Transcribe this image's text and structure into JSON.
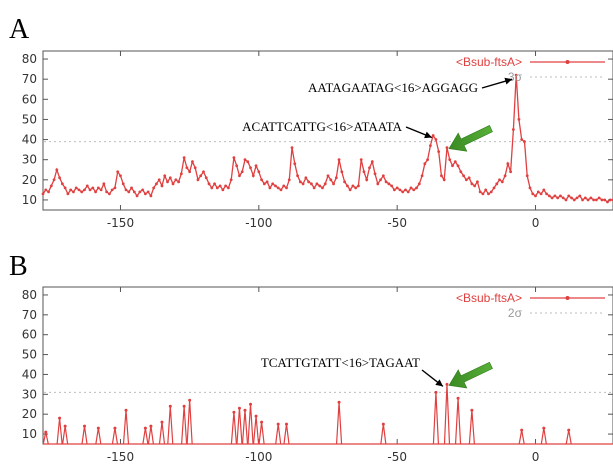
{
  "chart_data": [
    {
      "type": "line",
      "panel_label": "A",
      "legend": [
        {
          "label": "<Bsub-ftsA>",
          "color": "#e04040",
          "style": "line-points"
        },
        {
          "label": "3σ",
          "color": "#b8b8b8",
          "style": "dotted"
        }
      ],
      "threshold": 39,
      "xlim": [
        -178,
        28
      ],
      "ylim": [
        5,
        84
      ],
      "xticks": [
        -150,
        -100,
        -50,
        0
      ],
      "yticks": [
        10,
        20,
        30,
        40,
        50,
        60,
        70,
        80
      ],
      "annotations": [
        {
          "text": "AATAGAATAG<16>AGGAGG",
          "x": -7,
          "y": 70
        },
        {
          "text": "ACATTCATTG<16>ATAATA",
          "x": -36,
          "y": 42
        }
      ],
      "highlight_arrow_target": {
        "x": -32,
        "y": 36
      },
      "points": [
        [
          -178,
          13
        ],
        [
          -177,
          15
        ],
        [
          -176,
          14
        ],
        [
          -175,
          17
        ],
        [
          -174,
          20
        ],
        [
          -173,
          25
        ],
        [
          -172,
          21
        ],
        [
          -171,
          18
        ],
        [
          -170,
          16
        ],
        [
          -169,
          13
        ],
        [
          -168,
          15
        ],
        [
          -167,
          14
        ],
        [
          -166,
          16
        ],
        [
          -165,
          15
        ],
        [
          -164,
          14
        ],
        [
          -163,
          15
        ],
        [
          -162,
          17
        ],
        [
          -161,
          15
        ],
        [
          -160,
          16
        ],
        [
          -159,
          14
        ],
        [
          -158,
          16
        ],
        [
          -157,
          15
        ],
        [
          -156,
          18
        ],
        [
          -155,
          14
        ],
        [
          -154,
          13
        ],
        [
          -153,
          15
        ],
        [
          -152,
          16
        ],
        [
          -151,
          24
        ],
        [
          -150,
          22
        ],
        [
          -149,
          18
        ],
        [
          -148,
          15
        ],
        [
          -147,
          14
        ],
        [
          -146,
          16
        ],
        [
          -145,
          14
        ],
        [
          -144,
          12
        ],
        [
          -143,
          14
        ],
        [
          -142,
          15
        ],
        [
          -141,
          13
        ],
        [
          -140,
          14
        ],
        [
          -139,
          12
        ],
        [
          -138,
          16
        ],
        [
          -137,
          18
        ],
        [
          -136,
          20
        ],
        [
          -135,
          17
        ],
        [
          -134,
          22
        ],
        [
          -133,
          19
        ],
        [
          -132,
          21
        ],
        [
          -131,
          18
        ],
        [
          -130,
          20
        ],
        [
          -129,
          19
        ],
        [
          -128,
          23
        ],
        [
          -127,
          31
        ],
        [
          -126,
          26
        ],
        [
          -125,
          24
        ],
        [
          -124,
          29
        ],
        [
          -123,
          26
        ],
        [
          -122,
          20
        ],
        [
          -121,
          22
        ],
        [
          -120,
          24
        ],
        [
          -119,
          21
        ],
        [
          -118,
          18
        ],
        [
          -117,
          16
        ],
        [
          -116,
          18
        ],
        [
          -115,
          16
        ],
        [
          -114,
          17
        ],
        [
          -113,
          15
        ],
        [
          -112,
          17
        ],
        [
          -111,
          16
        ],
        [
          -110,
          20
        ],
        [
          -109,
          31
        ],
        [
          -108,
          27
        ],
        [
          -107,
          22
        ],
        [
          -106,
          24
        ],
        [
          -105,
          30
        ],
        [
          -104,
          29
        ],
        [
          -103,
          26
        ],
        [
          -102,
          22
        ],
        [
          -101,
          27
        ],
        [
          -100,
          24
        ],
        [
          -99,
          20
        ],
        [
          -98,
          18
        ],
        [
          -97,
          19
        ],
        [
          -96,
          16
        ],
        [
          -95,
          18
        ],
        [
          -94,
          17
        ],
        [
          -93,
          16
        ],
        [
          -92,
          15
        ],
        [
          -91,
          17
        ],
        [
          -90,
          16
        ],
        [
          -89,
          20
        ],
        [
          -88,
          36
        ],
        [
          -87,
          28
        ],
        [
          -86,
          22
        ],
        [
          -85,
          19
        ],
        [
          -84,
          18
        ],
        [
          -83,
          21
        ],
        [
          -82,
          19
        ],
        [
          -81,
          18
        ],
        [
          -80,
          16
        ],
        [
          -79,
          18
        ],
        [
          -78,
          17
        ],
        [
          -77,
          16
        ],
        [
          -76,
          18
        ],
        [
          -75,
          22
        ],
        [
          -74,
          20
        ],
        [
          -73,
          18
        ],
        [
          -72,
          21
        ],
        [
          -71,
          30
        ],
        [
          -70,
          24
        ],
        [
          -69,
          19
        ],
        [
          -68,
          17
        ],
        [
          -67,
          15
        ],
        [
          -66,
          17
        ],
        [
          -65,
          16
        ],
        [
          -64,
          17
        ],
        [
          -63,
          30
        ],
        [
          -62,
          24
        ],
        [
          -61,
          20
        ],
        [
          -60,
          26
        ],
        [
          -59,
          29
        ],
        [
          -58,
          23
        ],
        [
          -57,
          18
        ],
        [
          -56,
          20
        ],
        [
          -55,
          22
        ],
        [
          -54,
          19
        ],
        [
          -53,
          18
        ],
        [
          -52,
          17
        ],
        [
          -51,
          15
        ],
        [
          -50,
          16
        ],
        [
          -49,
          15
        ],
        [
          -48,
          14
        ],
        [
          -47,
          15
        ],
        [
          -46,
          14
        ],
        [
          -45,
          16
        ],
        [
          -44,
          15
        ],
        [
          -43,
          16
        ],
        [
          -42,
          18
        ],
        [
          -41,
          22
        ],
        [
          -40,
          28
        ],
        [
          -39,
          30
        ],
        [
          -38,
          37
        ],
        [
          -37,
          42
        ],
        [
          -36,
          40
        ],
        [
          -35,
          34
        ],
        [
          -34,
          22
        ],
        [
          -33,
          20
        ],
        [
          -32,
          36
        ],
        [
          -31,
          30
        ],
        [
          -30,
          27
        ],
        [
          -29,
          29
        ],
        [
          -28,
          27
        ],
        [
          -27,
          24
        ],
        [
          -26,
          22
        ],
        [
          -25,
          20
        ],
        [
          -24,
          21
        ],
        [
          -23,
          18
        ],
        [
          -22,
          17
        ],
        [
          -21,
          19
        ],
        [
          -20,
          14
        ],
        [
          -19,
          13
        ],
        [
          -18,
          15
        ],
        [
          -17,
          13
        ],
        [
          -16,
          14
        ],
        [
          -15,
          16
        ],
        [
          -14,
          18
        ],
        [
          -13,
          20
        ],
        [
          -12,
          19
        ],
        [
          -11,
          22
        ],
        [
          -10,
          28
        ],
        [
          -9,
          24
        ],
        [
          -8,
          45
        ],
        [
          -7,
          72
        ],
        [
          -6,
          50
        ],
        [
          -5,
          40
        ],
        [
          -4,
          39
        ],
        [
          -3,
          22
        ],
        [
          -2,
          16
        ],
        [
          -1,
          13
        ],
        [
          0,
          12
        ],
        [
          1,
          14
        ],
        [
          2,
          13
        ],
        [
          3,
          15
        ],
        [
          4,
          13
        ],
        [
          5,
          12
        ],
        [
          6,
          11
        ],
        [
          7,
          12
        ],
        [
          8,
          11
        ],
        [
          9,
          12
        ],
        [
          10,
          11
        ],
        [
          11,
          10
        ],
        [
          12,
          12
        ],
        [
          13,
          11
        ],
        [
          14,
          10
        ],
        [
          15,
          11
        ],
        [
          16,
          12
        ],
        [
          17,
          10
        ],
        [
          18,
          11
        ],
        [
          19,
          10
        ],
        [
          20,
          11
        ],
        [
          21,
          10
        ],
        [
          22,
          10
        ],
        [
          23,
          11
        ],
        [
          24,
          10
        ],
        [
          25,
          10
        ],
        [
          26,
          9
        ],
        [
          27,
          10
        ],
        [
          28,
          10
        ]
      ]
    },
    {
      "type": "line",
      "panel_label": "B",
      "legend": [
        {
          "label": "<Bsub-ftsA>",
          "color": "#e04040",
          "style": "line-points"
        },
        {
          "label": "2σ",
          "color": "#b8b8b8",
          "style": "dotted"
        }
      ],
      "threshold": 31,
      "baseline": 5,
      "xlim": [
        -178,
        28
      ],
      "ylim": [
        5,
        84
      ],
      "xticks": [
        -150,
        -100,
        -50,
        0
      ],
      "yticks": [
        10,
        20,
        30,
        40,
        50,
        60,
        70,
        80
      ],
      "annotations": [
        {
          "text": "TCATTGTATT<16>TAGAAT",
          "x": -32,
          "y": 35
        }
      ],
      "highlight_arrow_target": {
        "x": -32,
        "y": 35
      },
      "spikes": [
        [
          -177,
          11
        ],
        [
          -172,
          18
        ],
        [
          -170,
          14
        ],
        [
          -163,
          14
        ],
        [
          -158,
          13
        ],
        [
          -152,
          13
        ],
        [
          -148,
          22
        ],
        [
          -141,
          13
        ],
        [
          -139,
          14
        ],
        [
          -135,
          16
        ],
        [
          -132,
          24
        ],
        [
          -127,
          24
        ],
        [
          -125,
          27
        ],
        [
          -109,
          21
        ],
        [
          -107,
          23
        ],
        [
          -105,
          22
        ],
        [
          -103,
          25
        ],
        [
          -101,
          19
        ],
        [
          -99,
          16
        ],
        [
          -93,
          15
        ],
        [
          -90,
          15
        ],
        [
          -71,
          26
        ],
        [
          -55,
          15
        ],
        [
          -36,
          31
        ],
        [
          -32,
          35
        ],
        [
          -28,
          28
        ],
        [
          -23,
          22
        ],
        [
          -5,
          12
        ],
        [
          3,
          13
        ],
        [
          12,
          12
        ]
      ]
    }
  ]
}
